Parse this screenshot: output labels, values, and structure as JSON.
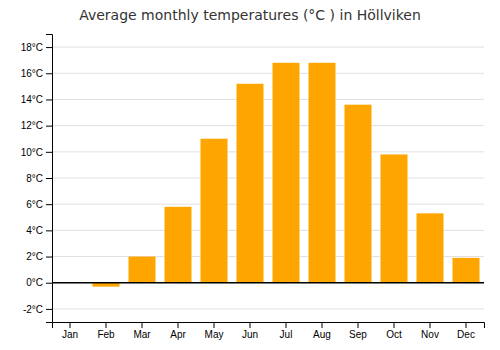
{
  "chart_data": {
    "type": "bar",
    "title": "Average monthly temperatures (°C ) in Höllviken",
    "categories": [
      "Jan",
      "Feb",
      "Mar",
      "Apr",
      "May",
      "Jun",
      "Jul",
      "Aug",
      "Sep",
      "Oct",
      "Nov",
      "Dec"
    ],
    "values": [
      0.0,
      -0.3,
      2.0,
      5.8,
      11.0,
      15.2,
      16.8,
      16.8,
      13.6,
      9.8,
      5.3,
      1.9
    ],
    "color": "#FFA500",
    "ylim": [
      -3,
      19
    ],
    "yticks": [
      {
        "value": -2,
        "label": "-2°C"
      },
      {
        "value": 0,
        "label": "0°C"
      },
      {
        "value": 2,
        "label": "2°C"
      },
      {
        "value": 4,
        "label": "4°C"
      },
      {
        "value": 6,
        "label": "6°C"
      },
      {
        "value": 8,
        "label": "8°C"
      },
      {
        "value": 10,
        "label": "10°C"
      },
      {
        "value": 12,
        "label": "12°C"
      },
      {
        "value": 14,
        "label": "14°C"
      },
      {
        "value": 16,
        "label": "16°C"
      },
      {
        "value": 18,
        "label": "18°C"
      }
    ],
    "grid": true
  }
}
